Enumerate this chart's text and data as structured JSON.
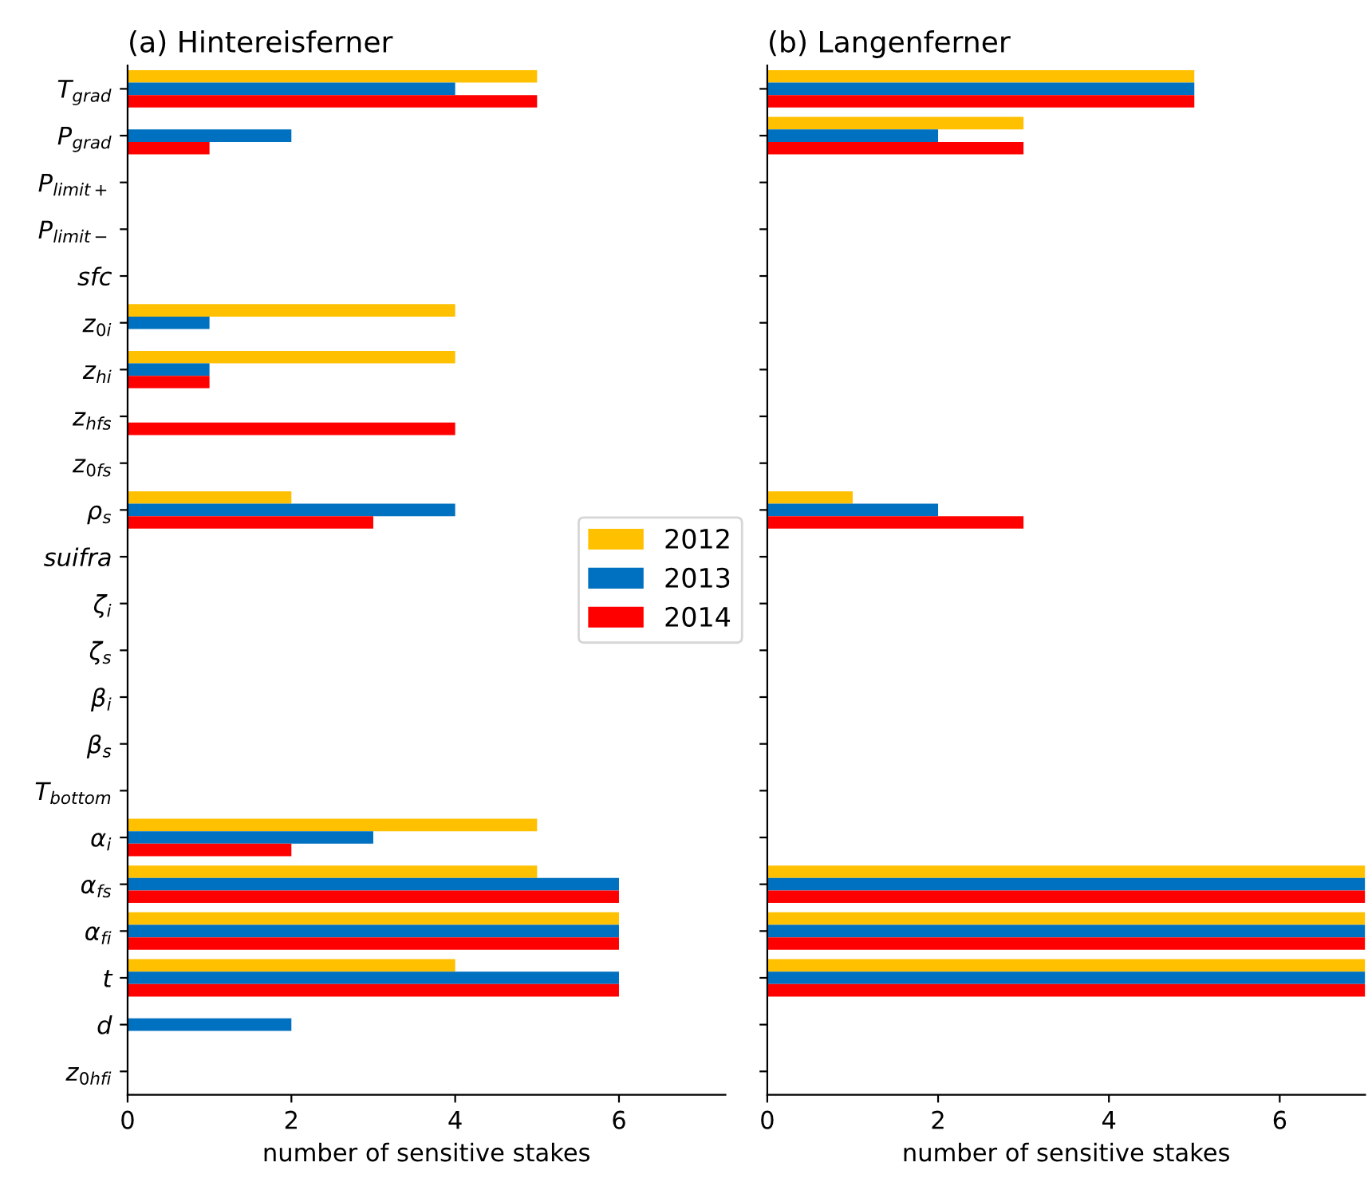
{
  "chart_data": [
    {
      "type": "bar",
      "orientation": "horizontal",
      "title": "(a) Hintereisferner",
      "xlabel": "number of sensitive stakes",
      "categories": [
        "T$_{grad}$",
        "P$_{grad}$",
        "P$_{limit+}$",
        "P$_{limit−}$",
        "sfc",
        "z$_{0i}$",
        "z$_{hi}$",
        "z$_{hfs}$",
        "z$_{0fs}$",
        "ρ$_{s}$",
        "suifra",
        "ζ$_{i}$",
        "ζ$_{s}$",
        "β$_{i}$",
        "β$_{s}$",
        "T$_{bottom}$",
        "α$_{i}$",
        "α$_{fs}$",
        "α$_{fi}$",
        "t",
        "d",
        "z$_{0hfi}$"
      ],
      "series": [
        {
          "name": "2012",
          "color": "#ffc000",
          "values": [
            5,
            0,
            0,
            0,
            0,
            4,
            4,
            0,
            0,
            2,
            0,
            0,
            0,
            0,
            0,
            0,
            5,
            5,
            6,
            4,
            0,
            0
          ]
        },
        {
          "name": "2013",
          "color": "#0070c0",
          "values": [
            4,
            2,
            0,
            0,
            0,
            1,
            1,
            0,
            0,
            4,
            0,
            0,
            0,
            0,
            0,
            0,
            3,
            6,
            6,
            6,
            2,
            0
          ]
        },
        {
          "name": "2014",
          "color": "#ff0000",
          "values": [
            5,
            1,
            0,
            0,
            0,
            0,
            1,
            4,
            0,
            3,
            0,
            0,
            0,
            0,
            0,
            0,
            2,
            6,
            6,
            6,
            0,
            0
          ]
        }
      ],
      "xlim": [
        0,
        7.3
      ],
      "xticks": [
        0,
        2,
        4,
        6
      ],
      "grid": false,
      "legend": "right"
    },
    {
      "type": "bar",
      "orientation": "horizontal",
      "title": "(b) Langenferner",
      "xlabel": "number of sensitive stakes",
      "categories": [
        null,
        null,
        null,
        null,
        null,
        null,
        null,
        null,
        null,
        null,
        null,
        null,
        null,
        null,
        null,
        null,
        null,
        null,
        null,
        null,
        null,
        null
      ],
      "series": [
        {
          "color": "#ffc000",
          "values": [
            5,
            3,
            0,
            0,
            0,
            0,
            0,
            0,
            0,
            1,
            0,
            0,
            0,
            0,
            0,
            0,
            0,
            7,
            7,
            7,
            0,
            0
          ]
        },
        {
          "color": "#0070c0",
          "values": [
            5,
            2,
            0,
            0,
            0,
            0,
            0,
            0,
            0,
            2,
            0,
            0,
            0,
            0,
            0,
            0,
            0,
            7,
            7,
            7,
            0,
            0
          ]
        },
        {
          "color": "#ff0000",
          "values": [
            5,
            3,
            0,
            0,
            0,
            0,
            0,
            0,
            0,
            3,
            0,
            0,
            0,
            0,
            0,
            0,
            0,
            7,
            7,
            7,
            0,
            0
          ]
        }
      ],
      "xlim": [
        0,
        7
      ],
      "xticks": [
        0,
        2,
        4,
        6
      ],
      "grid": false,
      "tick_labels": "x"
    }
  ]
}
